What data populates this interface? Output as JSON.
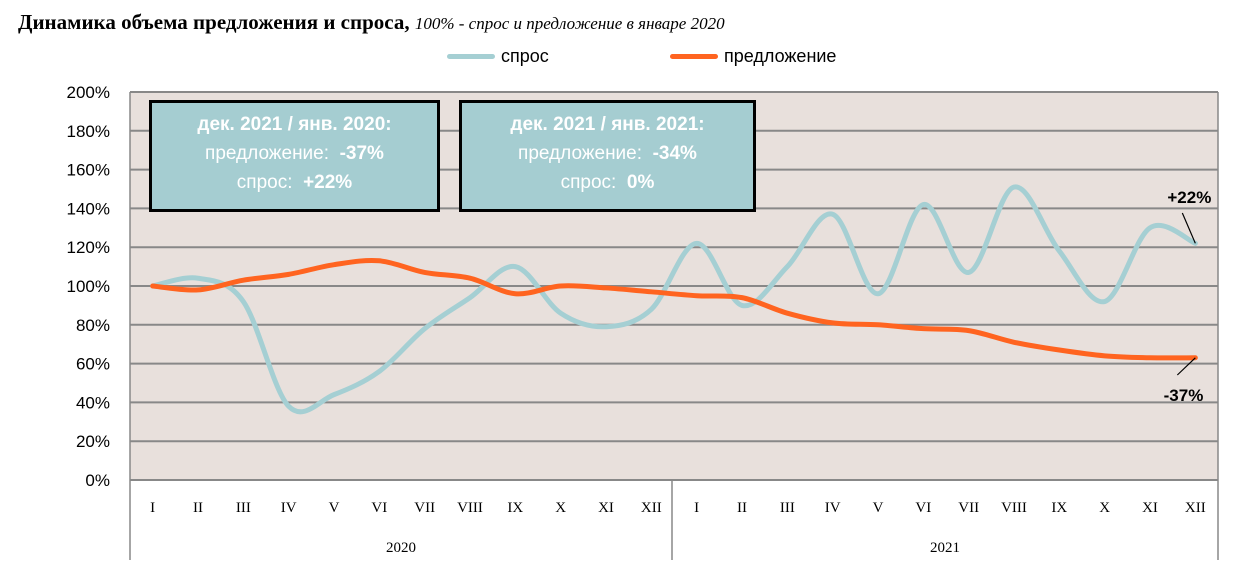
{
  "chart_data": {
    "type": "line",
    "title": "Динамика объема предложения и спроса,",
    "subtitle": "100% - спрос и предложение в январе 2020",
    "x": [
      "I",
      "II",
      "III",
      "IV",
      "V",
      "VI",
      "VII",
      "VIII",
      "IX",
      "X",
      "XI",
      "XII",
      "I",
      "II",
      "III",
      "IV",
      "V",
      "VI",
      "VII",
      "VIII",
      "IX",
      "X",
      "XI",
      "XII"
    ],
    "years": [
      "2020",
      "2021"
    ],
    "ylim": [
      0,
      200
    ],
    "yticks": [
      "0%",
      "20%",
      "40%",
      "60%",
      "80%",
      "100%",
      "120%",
      "140%",
      "160%",
      "180%",
      "200%"
    ],
    "grid": true,
    "legend_position": "top",
    "series": [
      {
        "name": "спрос",
        "color": "#a5cfd3",
        "values": [
          100,
          104,
          92,
          38,
          44,
          56,
          78,
          94,
          110,
          86,
          79,
          88,
          122,
          90,
          110,
          137,
          96,
          142,
          107,
          151,
          118,
          92,
          130,
          122
        ]
      },
      {
        "name": "предложение",
        "color": "#ff6420",
        "values": [
          100,
          98,
          103,
          106,
          111,
          113,
          107,
          104,
          96,
          100,
          99,
          97,
          95,
          94,
          86,
          81,
          80,
          78,
          77,
          71,
          67,
          64,
          63,
          63
        ]
      }
    ],
    "annotations": [
      "+22%",
      "-37%"
    ]
  },
  "boxes": [
    {
      "heading": "дек. 2021 / янв. 2020:",
      "supply_label": "предложение:",
      "supply_value": "-37%",
      "demand_label": "спрос:",
      "demand_value": "+22%"
    },
    {
      "heading": "дек. 2021 / янв. 2021:",
      "supply_label": "предложение:",
      "supply_value": "-34%",
      "demand_label": "спрос:",
      "demand_value": "0%"
    }
  ]
}
